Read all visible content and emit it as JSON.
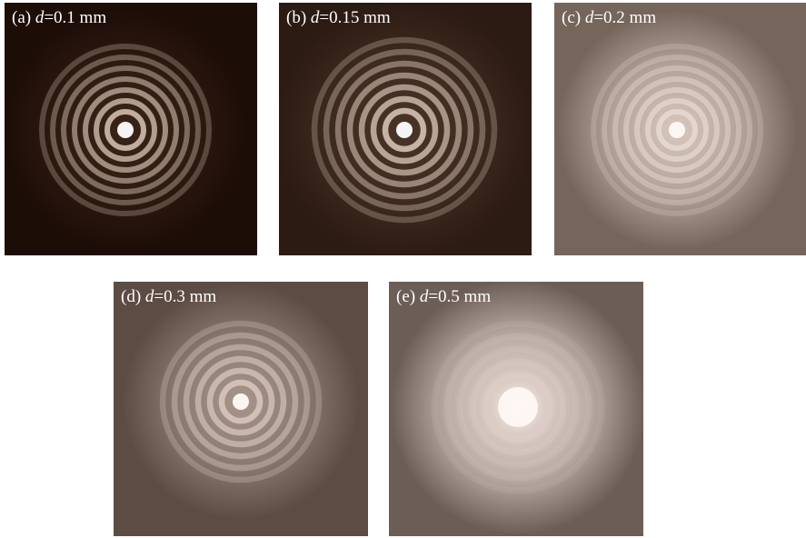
{
  "panels": [
    {
      "tag": "(a)",
      "var": "d",
      "rest": "=0.1 mm"
    },
    {
      "tag": "(b)",
      "var": "d",
      "rest": "=0.15 mm"
    },
    {
      "tag": "(c)",
      "var": "d",
      "rest": "=0.2 mm"
    },
    {
      "tag": "(d)",
      "var": "d",
      "rest": "=0.3 mm"
    },
    {
      "tag": "(e)",
      "var": "d",
      "rest": "=0.5 mm"
    }
  ]
}
